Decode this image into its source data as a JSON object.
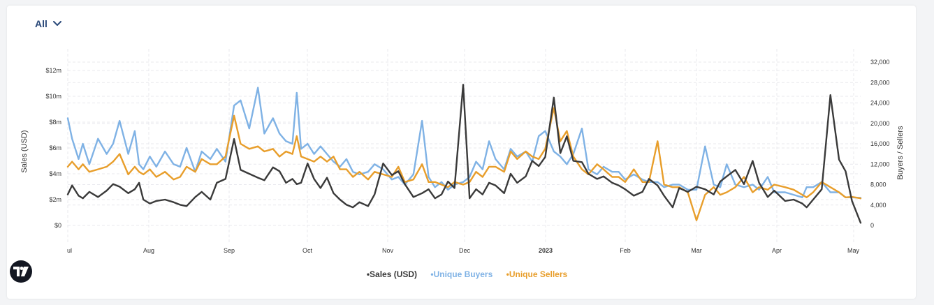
{
  "filter": {
    "label": "All"
  },
  "colors": {
    "sales": "#3a3a3a",
    "buyers": "#7fb2e5",
    "sellers": "#e89e2b",
    "accent": "#2b4a7a"
  },
  "legend": {
    "sales": "•Sales (USD)",
    "buyers": "•Unique Buyers",
    "sellers": "•Unique Sellers"
  },
  "chart_data": {
    "type": "line",
    "x_months": [
      "ul",
      "Aug",
      "Sep",
      "Oct",
      "Nov",
      "Dec",
      "2023",
      "Feb",
      "Mar",
      "Apr",
      "May"
    ],
    "left_axis": {
      "title": "Sales (USD)",
      "ticks": [
        "$0",
        "$2m",
        "$4m",
        "$6m",
        "$8m",
        "$10m",
        "$12m"
      ],
      "values": [
        0,
        2,
        4,
        6,
        8,
        10,
        12
      ],
      "ylim": [
        0,
        12.5
      ]
    },
    "right_axis": {
      "title": "Buyers / Sellers",
      "ticks": [
        "0",
        "4,000",
        "8,000",
        "12,000",
        "16,000",
        "20,000",
        "24,000",
        "28,000",
        "32,000"
      ],
      "values": [
        0,
        4000,
        8000,
        12000,
        16000,
        20000,
        24000,
        28000,
        32000
      ],
      "ylim": [
        0,
        33000
      ]
    },
    "grid": "dashed",
    "legend_position": "bottom-center",
    "series": [
      {
        "name": "Sales (USD)",
        "axis": "left",
        "unit": "USD (millions)",
        "x": [
          0,
          2,
          5,
          7,
          10,
          14,
          18,
          21,
          24,
          28,
          31,
          33,
          35,
          38,
          41,
          45,
          49,
          52,
          55,
          59,
          62,
          66,
          69,
          73,
          77,
          80,
          84,
          88,
          91,
          95,
          98,
          101,
          104,
          106,
          108,
          111,
          114,
          117,
          120,
          123,
          126,
          129,
          132,
          135,
          139,
          142,
          146,
          150,
          153,
          156,
          160,
          164,
          167,
          170,
          173,
          176,
          179,
          183,
          186,
          189,
          192,
          195,
          198,
          202,
          205,
          208,
          212,
          215,
          218,
          221,
          225,
          228,
          231,
          234,
          238,
          241,
          245,
          248,
          252,
          255,
          258,
          262,
          266,
          269,
          273,
          276,
          280,
          283,
          287,
          291,
          295,
          299,
          302,
          305,
          309,
          313,
          317,
          320,
          324,
          327,
          332,
          336,
          340,
          342,
          345,
          349,
          353,
          357,
          360,
          363,
          367
        ],
        "y": [
          2.4,
          3.1,
          2.3,
          2.1,
          2.6,
          2.2,
          2.7,
          3.2,
          3.0,
          2.5,
          2.8,
          3.3,
          2.0,
          1.7,
          1.9,
          2.0,
          1.8,
          1.6,
          1.5,
          2.2,
          2.6,
          2.0,
          3.3,
          3.6,
          6.7,
          4.3,
          4.0,
          3.7,
          3.5,
          4.5,
          4.2,
          3.3,
          3.6,
          3.2,
          3.3,
          4.8,
          3.6,
          2.9,
          3.7,
          2.5,
          2.0,
          1.6,
          1.4,
          1.8,
          1.5,
          2.4,
          4.8,
          3.9,
          4.2,
          3.2,
          2.2,
          2.5,
          2.8,
          2.1,
          2.4,
          3.4,
          2.9,
          10.9,
          2.1,
          2.8,
          2.4,
          3.3,
          3.1,
          2.5,
          4.0,
          3.3,
          3.8,
          5.0,
          4.6,
          5.3,
          9.9,
          5.6,
          6.9,
          5.0,
          4.9,
          4.0,
          3.6,
          3.8,
          3.3,
          3.1,
          2.8,
          2.3,
          2.6,
          3.6,
          3.1,
          2.3,
          1.4,
          2.9,
          2.6,
          3.0,
          2.8,
          2.4,
          3.4,
          3.8,
          4.3,
          3.2,
          5.0,
          3.3,
          2.2,
          2.7,
          1.9,
          2.0,
          1.7,
          1.4,
          2.0,
          2.8,
          10.1,
          5.1,
          4.2,
          1.9,
          0.2
        ]
      },
      {
        "name": "Unique Buyers",
        "axis": "right",
        "unit": "count",
        "x": [
          0,
          2,
          5,
          7,
          10,
          14,
          18,
          21,
          24,
          28,
          31,
          33,
          35,
          38,
          41,
          45,
          49,
          52,
          55,
          59,
          62,
          66,
          69,
          73,
          77,
          80,
          84,
          88,
          91,
          95,
          98,
          101,
          104,
          106,
          108,
          111,
          114,
          117,
          120,
          123,
          126,
          129,
          132,
          135,
          139,
          142,
          146,
          150,
          153,
          156,
          160,
          164,
          167,
          170,
          173,
          176,
          179,
          183,
          186,
          189,
          192,
          195,
          198,
          202,
          205,
          208,
          212,
          215,
          218,
          221,
          225,
          228,
          231,
          234,
          238,
          241,
          245,
          248,
          252,
          255,
          258,
          262,
          266,
          269,
          273,
          276,
          280,
          283,
          287,
          291,
          295,
          299,
          302,
          305,
          309,
          313,
          317,
          320,
          324,
          327,
          332,
          336,
          340,
          342,
          345,
          349,
          353,
          357,
          360,
          363,
          367
        ],
        "y": [
          21000,
          17000,
          13000,
          16000,
          12000,
          17000,
          14000,
          16000,
          20500,
          14000,
          18500,
          12000,
          11000,
          13500,
          11500,
          14500,
          12000,
          11500,
          15200,
          10500,
          14500,
          13000,
          15000,
          12500,
          23500,
          24500,
          19000,
          27000,
          18000,
          21000,
          18000,
          16500,
          16000,
          26000,
          15000,
          16000,
          14000,
          15500,
          14000,
          12500,
          11500,
          13000,
          10500,
          10000,
          10500,
          12000,
          11000,
          9000,
          9500,
          8000,
          10000,
          20500,
          9500,
          7500,
          8500,
          7000,
          8000,
          8500,
          9500,
          12500,
          11000,
          16500,
          13000,
          11000,
          15000,
          13500,
          14500,
          12500,
          17500,
          18500,
          14500,
          13500,
          12000,
          14000,
          19000,
          11000,
          10000,
          11500,
          10500,
          10500,
          9000,
          10000,
          9000,
          8500,
          8500,
          7500,
          8000,
          8000,
          7000,
          7000,
          15500,
          8000,
          7500,
          12000,
          8000,
          7500,
          8000,
          7000,
          9500,
          6500,
          6500,
          6000,
          5500,
          7500,
          7500,
          8500,
          6500,
          6500,
          5500,
          5500,
          5400
        ]
      },
      {
        "name": "Unique Sellers",
        "axis": "right",
        "unit": "count",
        "x": [
          0,
          2,
          5,
          7,
          10,
          14,
          18,
          21,
          24,
          28,
          31,
          33,
          35,
          38,
          41,
          45,
          49,
          52,
          55,
          59,
          62,
          66,
          69,
          73,
          77,
          80,
          84,
          88,
          91,
          95,
          98,
          101,
          104,
          106,
          108,
          111,
          114,
          117,
          120,
          123,
          126,
          129,
          132,
          135,
          139,
          142,
          146,
          150,
          153,
          156,
          160,
          164,
          167,
          170,
          173,
          176,
          179,
          183,
          186,
          189,
          192,
          195,
          198,
          202,
          205,
          208,
          212,
          215,
          218,
          221,
          225,
          228,
          231,
          234,
          238,
          241,
          245,
          248,
          252,
          255,
          258,
          262,
          266,
          269,
          273,
          276,
          280,
          283,
          287,
          291,
          295,
          299,
          302,
          305,
          309,
          313,
          317,
          320,
          324,
          327,
          332,
          336,
          340,
          342,
          345,
          349,
          353,
          357,
          360,
          363,
          367
        ],
        "y": [
          11500,
          12500,
          11000,
          12000,
          10500,
          11000,
          11500,
          12500,
          14000,
          10000,
          11500,
          10500,
          10000,
          11000,
          9500,
          10500,
          9000,
          9500,
          11500,
          10500,
          13000,
          12000,
          12000,
          13500,
          21500,
          16000,
          15000,
          15500,
          14500,
          15000,
          13500,
          14500,
          14000,
          17500,
          13500,
          13000,
          12500,
          13500,
          12500,
          13500,
          11000,
          11000,
          9500,
          10500,
          9000,
          10500,
          10000,
          9500,
          11500,
          8500,
          9000,
          12000,
          8500,
          8500,
          8000,
          7500,
          8500,
          8000,
          8500,
          10500,
          9500,
          11500,
          11500,
          10500,
          14500,
          13000,
          14500,
          13500,
          13000,
          15000,
          23000,
          16500,
          18500,
          13500,
          11000,
          10000,
          12000,
          11000,
          9500,
          9500,
          8500,
          11000,
          8500,
          8500,
          16500,
          8000,
          7500,
          7500,
          6500,
          1000,
          6000,
          7500,
          6000,
          6500,
          7500,
          9500,
          6500,
          7500,
          7000,
          8000,
          7500,
          7000,
          6000,
          5500,
          6500,
          8500,
          7500,
          6500,
          5500,
          5600,
          5300
        ]
      }
    ]
  }
}
